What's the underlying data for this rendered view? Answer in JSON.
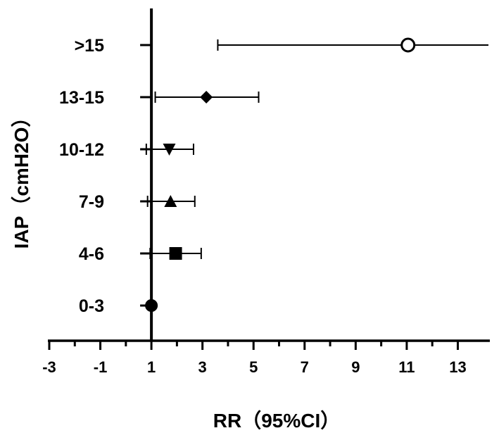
{
  "chart_data": {
    "type": "forest",
    "xlabel": "RR（95%CI）",
    "ylabel": "IAP（cmH2O）",
    "xlim": [
      -3,
      14.2
    ],
    "xticks": [
      -3,
      -2,
      -1,
      0,
      1,
      2,
      3,
      4,
      5,
      6,
      7,
      8,
      9,
      10,
      11,
      12,
      13
    ],
    "xtick_labels": [
      "-3",
      "-1",
      "1",
      "3",
      "5",
      "7",
      "9",
      "11",
      "13"
    ],
    "xtick_label_values": [
      -3,
      -1,
      1,
      3,
      5,
      7,
      9,
      11,
      13
    ],
    "reference_line": 1,
    "grid": false,
    "categories": [
      ">15",
      "13-15",
      "10-12",
      "7-9",
      "4-6",
      "0-3"
    ],
    "rr": [
      11.05,
      3.15,
      1.7,
      1.75,
      1.95,
      1.0
    ],
    "ci_lower": [
      3.6,
      1.15,
      0.8,
      0.85,
      0.95,
      1.0
    ],
    "ci_upper": [
      14.2,
      5.2,
      2.65,
      2.7,
      2.95,
      1.0
    ],
    "markers": [
      "open-circle",
      "diamond",
      "triangle-down",
      "triangle-up",
      "square",
      "circle"
    ],
    "color": "#000000"
  }
}
